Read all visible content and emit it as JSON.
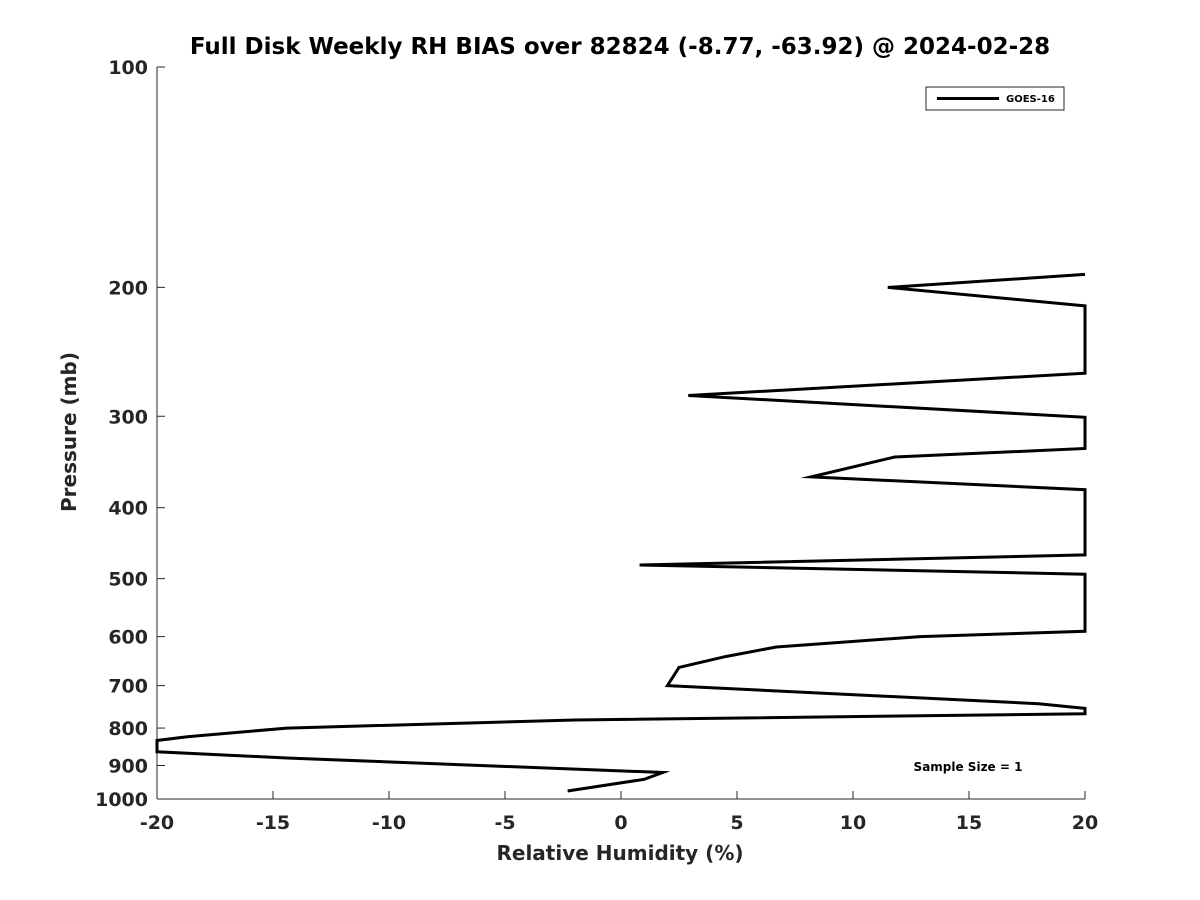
{
  "chart_data": {
    "type": "line",
    "title": "Full Disk Weekly RH BIAS over 82824 (-8.77, -63.92) @ 2024-02-28",
    "xlabel": "Relative Humidity (%)",
    "ylabel": "Pressure (mb)",
    "xlim": [
      -20,
      20
    ],
    "ylim": [
      100,
      1000
    ],
    "y_scale": "log",
    "y_direction": "reversed",
    "grid": false,
    "x_ticks": [
      -20,
      -15,
      -10,
      -5,
      0,
      5,
      10,
      15,
      20
    ],
    "x_tick_labels": [
      "-20",
      "-15",
      "-10",
      "-5",
      "0",
      "5",
      "10",
      "15",
      "20"
    ],
    "y_ticks": [
      100,
      200,
      300,
      400,
      500,
      600,
      700,
      800,
      900,
      1000
    ],
    "y_tick_labels": [
      "100",
      "200",
      "300",
      "400",
      "500",
      "600",
      "700",
      "800",
      "900",
      "1000"
    ],
    "legend_position": "top-right",
    "series": [
      {
        "name": "GOES-16",
        "color": "#000000",
        "points": [
          {
            "x": 20,
            "y": 192
          },
          {
            "x": 11.5,
            "y": 200
          },
          {
            "x": 20,
            "y": 212
          },
          {
            "x": 20,
            "y": 262
          },
          {
            "x": 2.9,
            "y": 281
          },
          {
            "x": 20,
            "y": 301
          },
          {
            "x": 20,
            "y": 332
          },
          {
            "x": 11.8,
            "y": 341
          },
          {
            "x": 8.2,
            "y": 363
          },
          {
            "x": 20,
            "y": 378
          },
          {
            "x": 20,
            "y": 464
          },
          {
            "x": 0.8,
            "y": 479
          },
          {
            "x": 20,
            "y": 493
          },
          {
            "x": 20,
            "y": 590
          },
          {
            "x": 12.9,
            "y": 600
          },
          {
            "x": 6.7,
            "y": 620
          },
          {
            "x": 4.5,
            "y": 639
          },
          {
            "x": 2.5,
            "y": 661
          },
          {
            "x": 2.0,
            "y": 700
          },
          {
            "x": 18,
            "y": 741
          },
          {
            "x": 20,
            "y": 752
          },
          {
            "x": 20,
            "y": 765
          },
          {
            "x": -2,
            "y": 780
          },
          {
            "x": -14.4,
            "y": 800
          },
          {
            "x": -18.7,
            "y": 822
          },
          {
            "x": -20,
            "y": 832
          },
          {
            "x": -20,
            "y": 862
          },
          {
            "x": -14.4,
            "y": 879
          },
          {
            "x": 1.8,
            "y": 920
          },
          {
            "x": 1.0,
            "y": 940
          },
          {
            "x": -2.3,
            "y": 975
          }
        ]
      }
    ],
    "annotation": "Sample Size = 1"
  }
}
